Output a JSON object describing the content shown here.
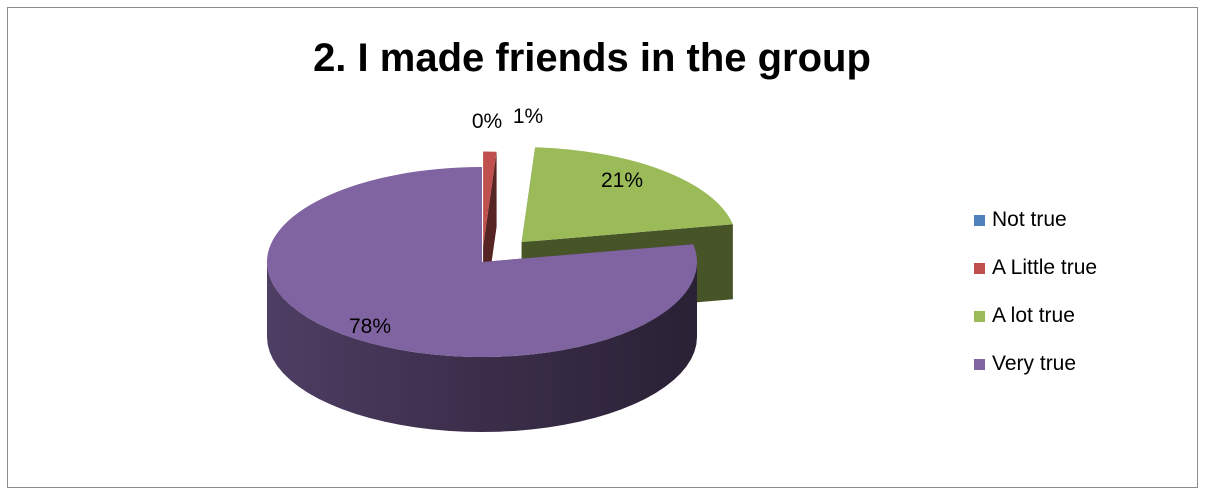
{
  "chart_data": {
    "type": "pie",
    "title": "2. I made friends in the group",
    "categories": [
      "Not true",
      "A Little true",
      "A lot true",
      "Very true"
    ],
    "values": [
      0,
      1,
      21,
      78
    ],
    "data_labels": [
      "0%",
      "1%",
      "21%",
      "78%"
    ],
    "colors": [
      "#4f81bd",
      "#c0504d",
      "#9bbb59",
      "#8064a2"
    ],
    "exploded": true,
    "three_d": true,
    "legend": "right"
  }
}
